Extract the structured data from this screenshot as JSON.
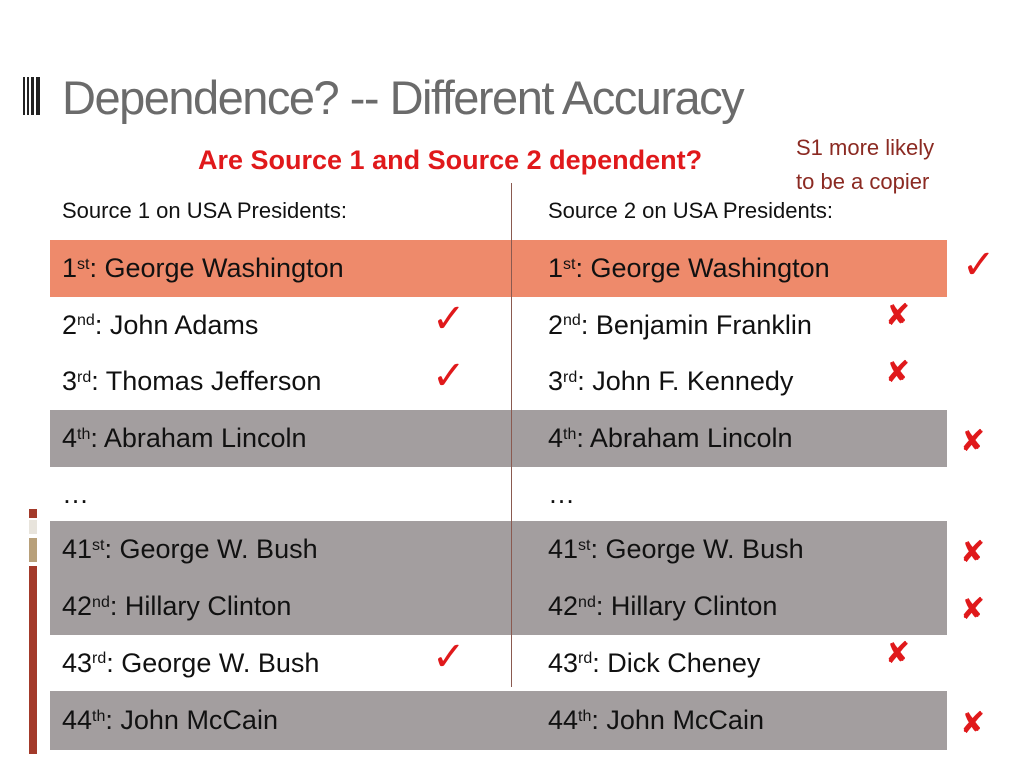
{
  "title": "Dependence?  -- Different Accuracy",
  "question": "Are Source 1 and Source 2 dependent?",
  "copier_note": [
    "S1 more likely",
    "to be a copier"
  ],
  "headers": {
    "source1": "Source 1 on USA Presidents:",
    "source2": "Source 2 on USA Presidents:"
  },
  "rows": [
    {
      "s1_num": "1",
      "s1_sup": "st",
      "s1_text": " : George Washington",
      "s2_num": "1",
      "s2_sup": "st",
      "s2_text": " : George Washington",
      "highlight": "orange"
    },
    {
      "s1_num": "2",
      "s1_sup": "nd",
      "s1_text": " : John Adams",
      "s2_num": "2",
      "s2_sup": "nd",
      "s2_text": " : Benjamin Franklin",
      "highlight": "none"
    },
    {
      "s1_num": "3",
      "s1_sup": "rd",
      "s1_text": " : Thomas Jefferson",
      "s2_num": "3",
      "s2_sup": "rd",
      "s2_text": " : John F. Kennedy",
      "highlight": "none"
    },
    {
      "s1_num": "4",
      "s1_sup": "th",
      "s1_text": "  : Abraham Lincoln",
      "s2_num": "4",
      "s2_sup": "th",
      "s2_text": "  : Abraham Lincoln",
      "highlight": "gray"
    },
    {
      "s1_num": "…",
      "s1_sup": "",
      "s1_text": "",
      "s2_num": "…",
      "s2_sup": "",
      "s2_text": "",
      "highlight": "none"
    },
    {
      "s1_num": "41",
      "s1_sup": "st",
      "s1_text": " : George W. Bush",
      "s2_num": "41",
      "s2_sup": "st",
      "s2_text": " : George W. Bush",
      "highlight": "gray"
    },
    {
      "s1_num": "42",
      "s1_sup": "nd",
      "s1_text": " : Hillary Clinton",
      "s2_num": "42",
      "s2_sup": "nd",
      "s2_text": " : Hillary Clinton",
      "highlight": "gray"
    },
    {
      "s1_num": "43",
      "s1_sup": "rd",
      "s1_text": " : George W. Bush",
      "s2_num": "43",
      "s2_sup": "rd",
      "s2_text": " : Dick Cheney",
      "highlight": "none"
    },
    {
      "s1_num": "44",
      "s1_sup": "th",
      "s1_text": ": John McCain",
      "s2_num": "44",
      "s2_sup": "th",
      "s2_text": ": John McCain",
      "highlight": "gray"
    }
  ],
  "marks": {
    "check_glyph": "✓",
    "cross_glyph": "✘",
    "s1_checks_rows": [
      1,
      2,
      7
    ],
    "s2_crosses_rows": [
      1,
      2,
      7
    ],
    "outside_check_rows": [
      0
    ],
    "outside_cross_rows": [
      3,
      5,
      6,
      8
    ]
  },
  "colors": {
    "accent_red": "#e0191b",
    "note_brown": "#8b2a22",
    "row_orange": "#ee8a6b",
    "row_gray": "#a39e9f",
    "title_gray": "#6b6b6b"
  }
}
